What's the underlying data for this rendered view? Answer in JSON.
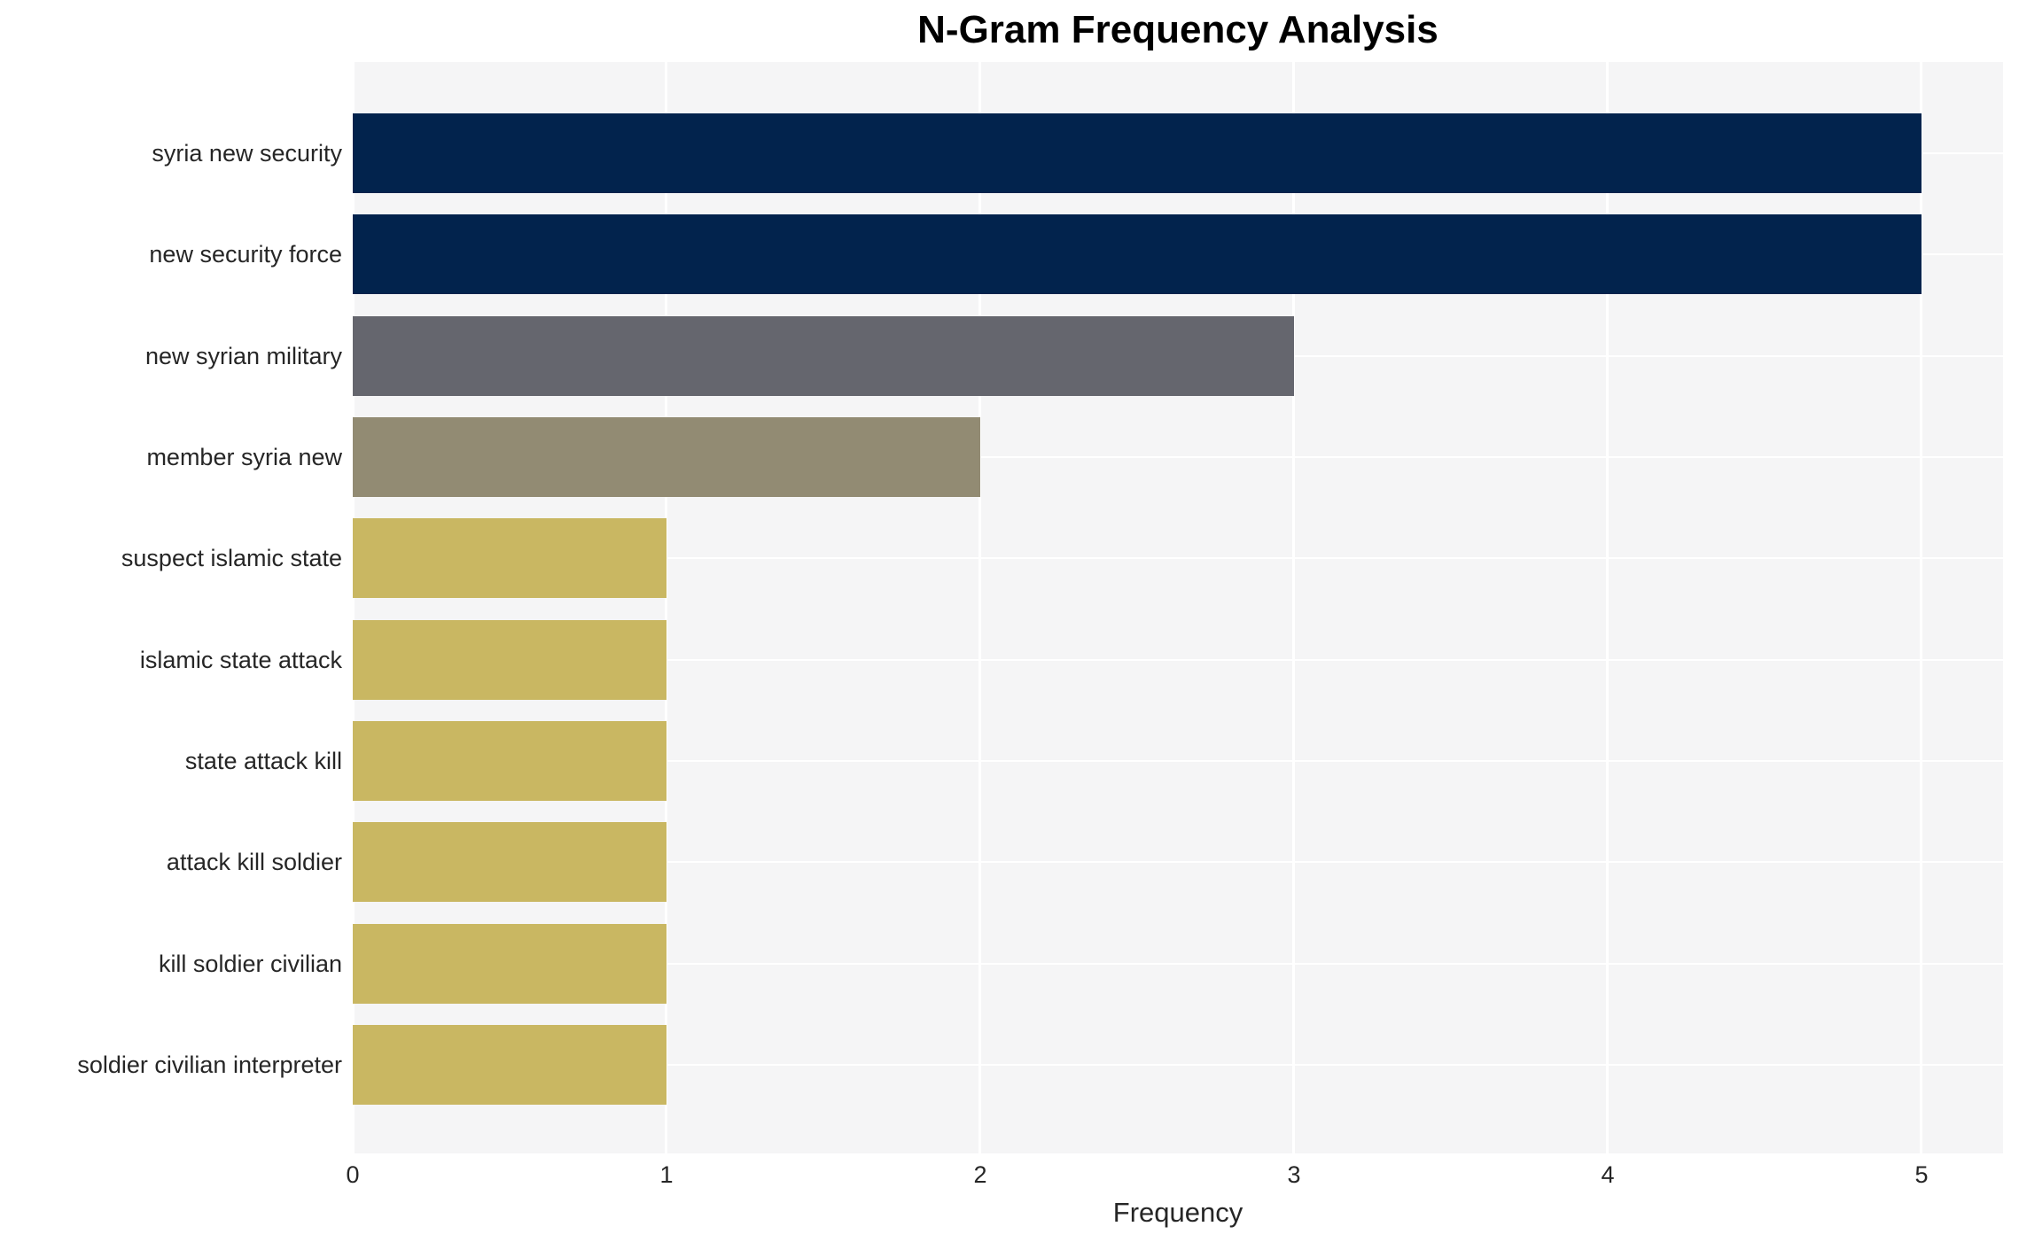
{
  "chart_data": {
    "type": "bar",
    "orientation": "horizontal",
    "title": "N-Gram Frequency Analysis",
    "xlabel": "Frequency",
    "ylabel": "",
    "categories": [
      "syria new security",
      "new security force",
      "new syrian military",
      "member syria new",
      "suspect islamic state",
      "islamic state attack",
      "state attack kill",
      "attack kill soldier",
      "kill soldier civilian",
      "soldier civilian interpreter"
    ],
    "values": [
      5,
      5,
      3,
      2,
      1,
      1,
      1,
      1,
      1,
      1
    ],
    "bar_colors": [
      "#02234d",
      "#02234d",
      "#65666e",
      "#928b73",
      "#c9b762",
      "#c9b762",
      "#c9b762",
      "#c9b762",
      "#c9b762",
      "#c9b762"
    ],
    "xticks": [
      0,
      1,
      2,
      3,
      4,
      5
    ],
    "xtick_labels": [
      "0",
      "1",
      "2",
      "3",
      "4",
      "5"
    ],
    "xlim": [
      0,
      5.26
    ],
    "grid": true,
    "grid_color": "#ffffff",
    "plot_bg_color": "#f5f5f6",
    "figure_bg_color": "#ffffff",
    "legend": false
  }
}
